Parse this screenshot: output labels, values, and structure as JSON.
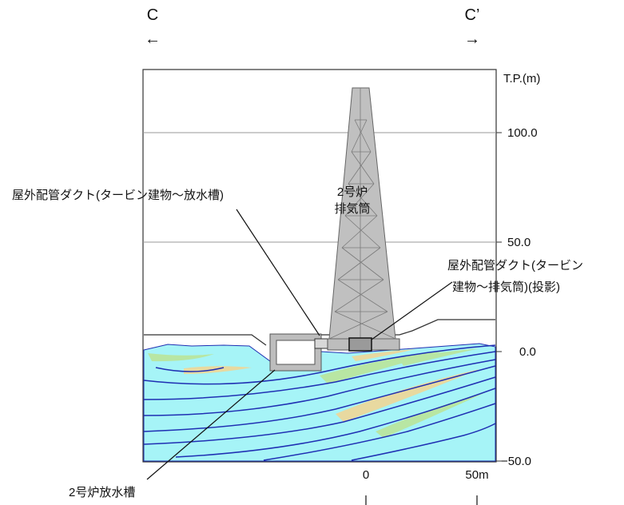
{
  "section": {
    "left_letter": "C",
    "right_letter": "C’",
    "left_arrow": "←",
    "right_arrow": "→"
  },
  "axis": {
    "unit_label": "T.P.(m)",
    "ticks": [
      "100.0",
      "50.0",
      "0.0",
      "−50.0"
    ],
    "scale_ticks": [
      "0",
      "50m"
    ]
  },
  "labels": {
    "stack": [
      "2号炉",
      "排気筒"
    ],
    "outdoor_duct_turbine": "屋外配管ダクト(タービン建物～放水槽)",
    "outdoor_duct_stack": [
      "屋外配管ダクト(タービン",
      "建物～排気筒)(投影)"
    ],
    "discharge_tank": "2号炉放水槽"
  },
  "colors": {
    "water_fill": "#a6f4f7",
    "stack_fill": "#c0c0c0",
    "structure_fill": "#bdbdbd",
    "stratum_dark": "#1f2fb3",
    "stratum_green": "#b8e6a3",
    "stratum_tan": "#e8d9a0"
  }
}
